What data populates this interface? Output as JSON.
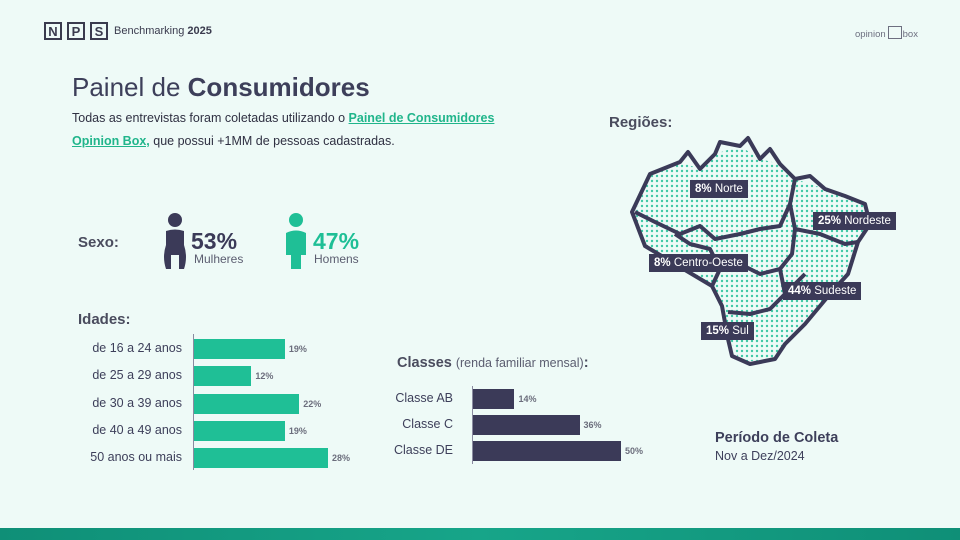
{
  "header": {
    "nps_letters": [
      "N",
      "P",
      "S"
    ],
    "subtitle_prefix": "Benchmarking",
    "subtitle_year": "2025",
    "brand_left": "opinion",
    "brand_right": "box"
  },
  "title": {
    "prefix": "Painel de",
    "bold": "Consumidores"
  },
  "intro": {
    "text_before": "Todas as entrevistas foram coletadas utilizando o ",
    "link": "Painel de Consumidores Opinion Box,",
    "text_after": " que possui +1MM de pessoas cadastradas."
  },
  "sexo": {
    "label": "Sexo:",
    "female": {
      "pct": "53%",
      "label": "Mulheres",
      "color": "#3b3a58"
    },
    "male": {
      "pct": "47%",
      "label": "Homens",
      "color": "#1fbf96"
    }
  },
  "idades": {
    "label": "Idades:",
    "rows": [
      {
        "label": "de 16 a 24 anos",
        "value": 19,
        "display": "19%"
      },
      {
        "label": "de 25 a 29 anos",
        "value": 12,
        "display": "12%"
      },
      {
        "label": "de 30 a 39 anos",
        "value": 22,
        "display": "22%"
      },
      {
        "label": "de 40 a 49 anos",
        "value": 19,
        "display": "19%"
      },
      {
        "label": "50 anos ou mais",
        "value": 28,
        "display": "28%"
      }
    ]
  },
  "classes": {
    "label": "Classes",
    "label_note": "(renda familiar mensal)",
    "label_colon": ":",
    "rows": [
      {
        "label": "Classe AB",
        "value": 14,
        "display": "14%"
      },
      {
        "label": "Classe C",
        "value": 36,
        "display": "36%"
      },
      {
        "label": "Classe DE",
        "value": 50,
        "display": "50%"
      }
    ]
  },
  "regioes": {
    "label": "Regiões:",
    "items": [
      {
        "pct": "8%",
        "name": "Norte"
      },
      {
        "pct": "25%",
        "name": "Nordeste"
      },
      {
        "pct": "8%",
        "name": "Centro-Oeste"
      },
      {
        "pct": "44%",
        "name": "Sudeste"
      },
      {
        "pct": "15%",
        "name": "Sul"
      }
    ]
  },
  "periodo": {
    "title": "Período de Coleta",
    "value": "Nov a Dez/2024"
  },
  "colors": {
    "accent": "#1fbf96",
    "dark": "#3b3a58",
    "background": "#eefaf7",
    "footer": "#17a589"
  }
}
